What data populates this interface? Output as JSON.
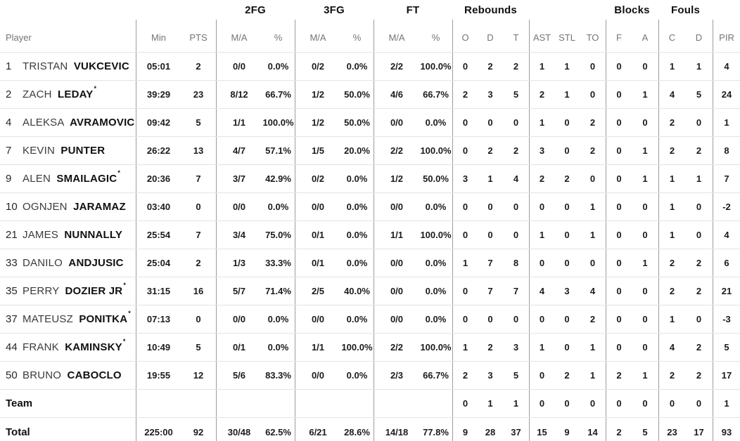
{
  "table": {
    "groups": [
      {
        "label": "2FG"
      },
      {
        "label": "3FG"
      },
      {
        "label": "FT"
      },
      {
        "label": "Rebounds"
      },
      {
        "label": "Blocks"
      },
      {
        "label": "Fouls"
      }
    ],
    "cols": [
      "Player",
      "Min",
      "PTS",
      "M/A",
      "%",
      "M/A",
      "%",
      "M/A",
      "%",
      "O",
      "D",
      "T",
      "AST",
      "STL",
      "TO",
      "F",
      "A",
      "C",
      "D",
      "PIR"
    ],
    "players": [
      {
        "number": "1",
        "first": "TRISTAN",
        "last": "VUKCEVIC",
        "mark": "",
        "stats": [
          "05:01",
          "2",
          "0/0",
          "0.0%",
          "0/2",
          "0.0%",
          "2/2",
          "100.0%",
          "0",
          "2",
          "2",
          "1",
          "1",
          "0",
          "0",
          "0",
          "1",
          "1",
          "4"
        ]
      },
      {
        "number": "2",
        "first": "ZACH",
        "last": "LEDAY",
        "mark": "*",
        "stats": [
          "39:29",
          "23",
          "8/12",
          "66.7%",
          "1/2",
          "50.0%",
          "4/6",
          "66.7%",
          "2",
          "3",
          "5",
          "2",
          "1",
          "0",
          "0",
          "1",
          "4",
          "5",
          "24"
        ]
      },
      {
        "number": "4",
        "first": "ALEKSA",
        "last": "AVRAMOVIC",
        "mark": "",
        "stats": [
          "09:42",
          "5",
          "1/1",
          "100.0%",
          "1/2",
          "50.0%",
          "0/0",
          "0.0%",
          "0",
          "0",
          "0",
          "1",
          "0",
          "2",
          "0",
          "0",
          "2",
          "0",
          "1"
        ]
      },
      {
        "number": "7",
        "first": "KEVIN",
        "last": "PUNTER",
        "mark": "",
        "stats": [
          "26:22",
          "13",
          "4/7",
          "57.1%",
          "1/5",
          "20.0%",
          "2/2",
          "100.0%",
          "0",
          "2",
          "2",
          "3",
          "0",
          "2",
          "0",
          "1",
          "2",
          "2",
          "8"
        ]
      },
      {
        "number": "9",
        "first": "ALEN",
        "last": "SMAILAGIC",
        "mark": "*",
        "stats": [
          "20:36",
          "7",
          "3/7",
          "42.9%",
          "0/2",
          "0.0%",
          "1/2",
          "50.0%",
          "3",
          "1",
          "4",
          "2",
          "2",
          "0",
          "0",
          "1",
          "1",
          "1",
          "7"
        ]
      },
      {
        "number": "10",
        "first": "OGNJEN",
        "last": "JARAMAZ",
        "mark": "",
        "stats": [
          "03:40",
          "0",
          "0/0",
          "0.0%",
          "0/0",
          "0.0%",
          "0/0",
          "0.0%",
          "0",
          "0",
          "0",
          "0",
          "0",
          "1",
          "0",
          "0",
          "1",
          "0",
          "-2"
        ]
      },
      {
        "number": "21",
        "first": "JAMES",
        "last": "NUNNALLY",
        "mark": "",
        "stats": [
          "25:54",
          "7",
          "3/4",
          "75.0%",
          "0/1",
          "0.0%",
          "1/1",
          "100.0%",
          "0",
          "0",
          "0",
          "1",
          "0",
          "1",
          "0",
          "0",
          "1",
          "0",
          "4"
        ]
      },
      {
        "number": "33",
        "first": "DANILO",
        "last": "ANDJUSIC",
        "mark": "",
        "stats": [
          "25:04",
          "2",
          "1/3",
          "33.3%",
          "0/1",
          "0.0%",
          "0/0",
          "0.0%",
          "1",
          "7",
          "8",
          "0",
          "0",
          "0",
          "0",
          "1",
          "2",
          "2",
          "6"
        ]
      },
      {
        "number": "35",
        "first": "PERRY",
        "last": "DOZIER JR",
        "mark": "*",
        "stats": [
          "31:15",
          "16",
          "5/7",
          "71.4%",
          "2/5",
          "40.0%",
          "0/0",
          "0.0%",
          "0",
          "7",
          "7",
          "4",
          "3",
          "4",
          "0",
          "0",
          "2",
          "2",
          "21"
        ]
      },
      {
        "number": "37",
        "first": "MATEUSZ",
        "last": "PONITKA",
        "mark": "*",
        "stats": [
          "07:13",
          "0",
          "0/0",
          "0.0%",
          "0/0",
          "0.0%",
          "0/0",
          "0.0%",
          "0",
          "0",
          "0",
          "0",
          "0",
          "2",
          "0",
          "0",
          "1",
          "0",
          "-3"
        ]
      },
      {
        "number": "44",
        "first": "FRANK",
        "last": "KAMINSKY",
        "mark": "*",
        "stats": [
          "10:49",
          "5",
          "0/1",
          "0.0%",
          "1/1",
          "100.0%",
          "2/2",
          "100.0%",
          "1",
          "2",
          "3",
          "1",
          "0",
          "1",
          "0",
          "0",
          "4",
          "2",
          "5"
        ]
      },
      {
        "number": "50",
        "first": "BRUNO",
        "last": "CABOCLO",
        "mark": "",
        "stats": [
          "19:55",
          "12",
          "5/6",
          "83.3%",
          "0/0",
          "0.0%",
          "2/3",
          "66.7%",
          "2",
          "3",
          "5",
          "0",
          "2",
          "1",
          "2",
          "1",
          "2",
          "2",
          "17"
        ]
      }
    ],
    "team_row": {
      "label": "Team",
      "stats": [
        "",
        "",
        "",
        "",
        "",
        "",
        "",
        "",
        "0",
        "1",
        "1",
        "0",
        "0",
        "0",
        "0",
        "0",
        "0",
        "0",
        "1"
      ]
    },
    "total_row": {
      "label": "Total",
      "stats": [
        "225:00",
        "92",
        "30/48",
        "62.5%",
        "6/21",
        "28.6%",
        "14/18",
        "77.8%",
        "9",
        "28",
        "37",
        "15",
        "9",
        "14",
        "2",
        "5",
        "23",
        "17",
        "93"
      ]
    }
  }
}
